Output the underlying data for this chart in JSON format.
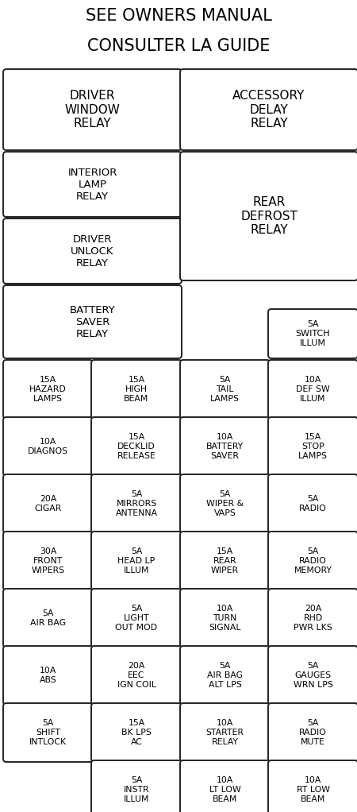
{
  "title_line1": "SEE OWNERS MANUAL",
  "title_line2": "CONSULTER LA GUIDE",
  "title_fontsize": 15,
  "bg_color": "#ffffff",
  "box_facecolor": "#ffffff",
  "box_edgecolor": "#222222",
  "text_color": "#000000",
  "fig_width": 4.5,
  "fig_height": 10.22,
  "dpi": 100,
  "grid_rows": [
    [
      "15A\nHAZARD\nLAMPS",
      "15A\nHIGH\nBEAM",
      "5A\nTAIL\nLAMPS",
      "10A\nDEF SW\nILLUM"
    ],
    [
      "10A\nDIAGNOS",
      "15A\nDECKLID\nRELEASE",
      "10A\nBATTERY\nSAVER",
      "15A\nSTOP\nLAMPS"
    ],
    [
      "20A\nCIGAR",
      "5A\nMIRRORS\nANTENNA",
      "5A\nWIPER &\nVAPS",
      "5A\nRADIO"
    ],
    [
      "30A\nFRONT\nWIPERS",
      "5A\nHEAD LP\nILLUM",
      "15A\nREAR\nWIPER",
      "5A\nRADIO\nMEMORY"
    ],
    [
      "5A\nAIR BAG",
      "5A\nLIGHT\nOUT MOD",
      "10A\nTURN\nSIGNAL",
      "20A\nRHD\nPWR LKS"
    ],
    [
      "10A\nABS",
      "20A\nEEC\nIGN COIL",
      "5A\nAIR BAG\nALT LPS",
      "5A\nGAUGES\nWRN LPS"
    ],
    [
      "5A\nSHIFT\nINTLOCK",
      "15A\nBK LPS\nAC",
      "10A\nSTARTER\nRELAY",
      "5A\nRADIO\nMUTE"
    ],
    [
      "",
      "5A\nINSTR\nILLUM",
      "10A\nLT LOW\nBEAM",
      "10A\nRT LOW\nBEAM"
    ]
  ]
}
